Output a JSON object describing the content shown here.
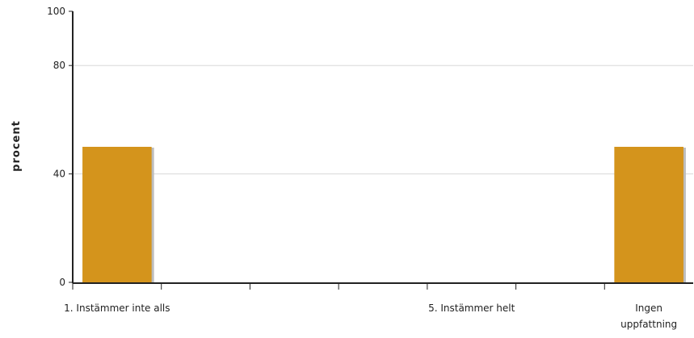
{
  "chart_data": {
    "type": "bar",
    "ylabel": "procent",
    "ylim": [
      0,
      100
    ],
    "yticks": [
      0,
      40,
      80,
      100
    ],
    "gridlines": [
      40,
      80
    ],
    "categories": [
      [
        "1. Instämmer inte alls"
      ],
      [
        ""
      ],
      [
        ""
      ],
      [
        ""
      ],
      [
        "5. Instämmer helt"
      ],
      [
        ""
      ],
      [
        "Ingen",
        "uppfattning"
      ]
    ],
    "series": [
      {
        "values": [
          50,
          0,
          0,
          0,
          0,
          0,
          50
        ]
      }
    ],
    "bar_color": "#d4941c",
    "shadow_color": "#bdbdbd",
    "grid": true,
    "legend": "none"
  }
}
